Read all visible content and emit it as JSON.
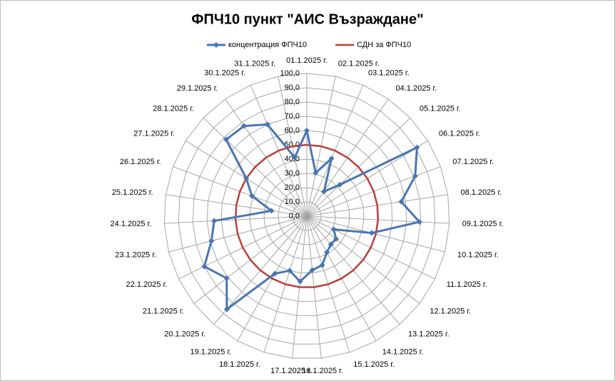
{
  "chart_data": {
    "type": "radar",
    "title": "ФПЧ10 пункт \"АИС Възраждане\"",
    "categories": [
      "01.1.2025 г.",
      "02.1.2025 г.",
      "03.1.2025 г.",
      "04.1.2025 г.",
      "05.1.2025 г.",
      "06.1.2025 г.",
      "07.1.2025 г.",
      "08.1.2025 г.",
      "09.1.2025 г.",
      "10.1.2025 г.",
      "11.1.2025 г.",
      "12.1.2025 г.",
      "13.1.2025 г.",
      "14.1.2025 г.",
      "15.1.2025 г.",
      "16.1.2025 г.",
      "17.1.2025 г.",
      "18.1.2025 г.",
      "19.1.2025 г.",
      "20.1.2025 г.",
      "21.1.2025 г.",
      "22.1.2025 г.",
      "23.1.2025 г.",
      "24.1.2025 г.",
      "25.1.2025 г.",
      "26.1.2025 г.",
      "27.1.2025 г.",
      "28.1.2025 г.",
      "29.1.2025 г.",
      "30.1.2025 г.",
      "31.1.2025 г."
    ],
    "series": [
      {
        "name": "концентрация  ФПЧ10",
        "color": "#4a76b0",
        "values": [
          60,
          31,
          44,
          21,
          32,
          91,
          81,
          67,
          79,
          47,
          21,
          26,
          26,
          29,
          36,
          38,
          46,
          40,
          46,
          86,
          71,
          80,
          69,
          65,
          25,
          41,
          50,
          78,
          77,
          70,
          42
        ]
      },
      {
        "name": "СДН за ФПЧ10",
        "color": "#b8403c",
        "values": [
          50,
          50,
          50,
          50,
          50,
          50,
          50,
          50,
          50,
          50,
          50,
          50,
          50,
          50,
          50,
          50,
          50,
          50,
          50,
          50,
          50,
          50,
          50,
          50,
          50,
          50,
          50,
          50,
          50,
          50,
          50
        ]
      }
    ],
    "ylim": [
      0,
      100
    ],
    "yticks": [
      {
        "value": 0,
        "label": "0,0"
      },
      {
        "value": 10,
        "label": "10,0"
      },
      {
        "value": 20,
        "label": "20,0"
      },
      {
        "value": 30,
        "label": "30,0"
      },
      {
        "value": 40,
        "label": "40,0"
      },
      {
        "value": 50,
        "label": "50,0"
      },
      {
        "value": 60,
        "label": "60,0"
      },
      {
        "value": 70,
        "label": "70,0"
      },
      {
        "value": 80,
        "label": "80,0"
      },
      {
        "value": 90,
        "label": "90,0"
      },
      {
        "value": 100,
        "label": "100,0"
      }
    ],
    "grid": true,
    "legend": "top"
  }
}
